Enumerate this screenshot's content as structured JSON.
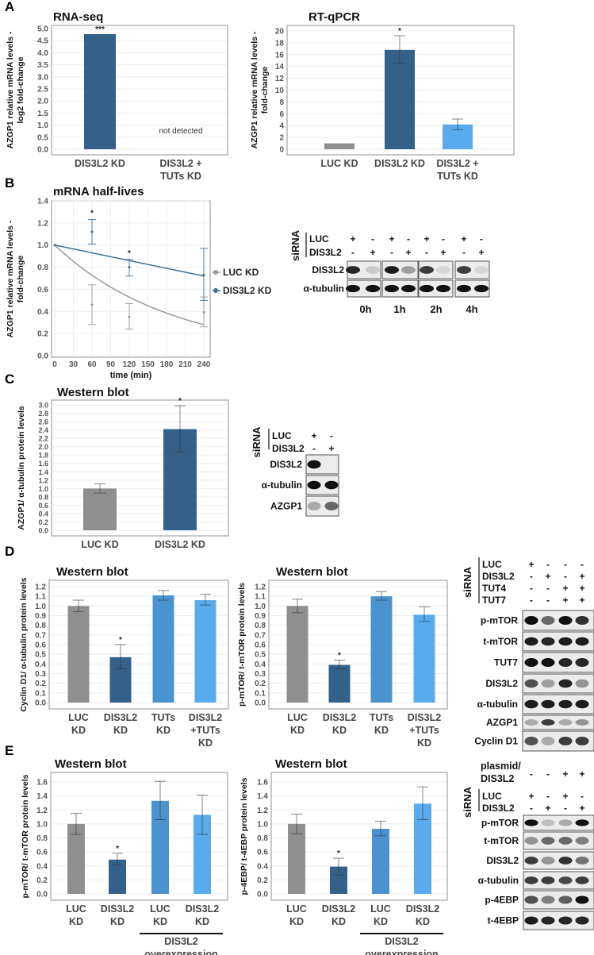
{
  "panel_letters": [
    "A",
    "B",
    "C",
    "D",
    "E"
  ],
  "colors": {
    "gray": "#8f8f8f",
    "dark_blue": "#346189",
    "mid_blue": "#4a93cf",
    "light_blue": "#5aabeb",
    "line_gray": "#999999",
    "line_blue": "#3b6f96"
  },
  "chart_data": [
    {
      "id": "A1",
      "type": "bar",
      "title": "RNA-seq",
      "ylabel": [
        "AZGP1 relative mRNA levels -",
        "log2 fold-change"
      ],
      "categories": [
        [
          "DIS3L2 KD"
        ],
        [
          "DIS3L2 +",
          "TUTs KD"
        ]
      ],
      "values": [
        4.77,
        null
      ],
      "err_low": [
        null,
        null
      ],
      "err_high": [
        null,
        null
      ],
      "colors": [
        "dark_blue",
        null
      ],
      "stars": [
        "***",
        ""
      ],
      "annotation": "not detected",
      "ylim": [
        0,
        5
      ],
      "ytick_step": 0.5,
      "ytick_decimals": 1
    },
    {
      "id": "A2",
      "type": "bar",
      "title": "RT-qPCR",
      "ylabel": [
        "AZGP1 relative mRNA levels -",
        "fold-change"
      ],
      "categories": [
        [
          "LUC KD"
        ],
        [
          "DIS3L2 KD"
        ],
        [
          "DIS3L2 +",
          "TUTs KD"
        ]
      ],
      "values": [
        1.0,
        16.8,
        4.2
      ],
      "err_low": [
        null,
        14.5,
        3.3
      ],
      "err_high": [
        null,
        19.2,
        5.1
      ],
      "colors": [
        "gray",
        "dark_blue",
        "light_blue"
      ],
      "stars": [
        "",
        "*",
        ""
      ],
      "ylim": [
        0,
        20
      ],
      "ytick_step": 2,
      "ytick_decimals": 0
    },
    {
      "id": "B",
      "type": "line",
      "title": "mRNA half-lives",
      "xlabel": "time (min)",
      "ylabel": [
        "AZGP1 relative mRNA levels -",
        "fold-change"
      ],
      "xticks": [
        0,
        30,
        60,
        90,
        120,
        150,
        180,
        210,
        240
      ],
      "xlim": [
        0,
        240
      ],
      "ylim": [
        0,
        1.4
      ],
      "ytick_step": 0.2,
      "ytick_decimals": 1,
      "series": [
        {
          "name": "LUC KD",
          "color": "line_gray",
          "x": [
            0,
            60,
            120,
            240
          ],
          "y": [
            1.0,
            0.46,
            0.35,
            0.39
          ],
          "err_low": [
            1.0,
            0.28,
            0.24,
            0.26
          ],
          "err_high": [
            1.0,
            0.64,
            0.47,
            0.53
          ],
          "fit": {
            "type": "exponential",
            "y0": 1.0,
            "y_end": 0.28
          },
          "stars": [
            "",
            "",
            "",
            ""
          ]
        },
        {
          "name": "DIS3L2 KD",
          "color": "line_blue",
          "x": [
            0,
            60,
            120,
            240
          ],
          "y": [
            1.0,
            1.12,
            0.8,
            0.73
          ],
          "err_low": [
            1.0,
            1.01,
            0.72,
            0.5
          ],
          "err_high": [
            1.0,
            1.23,
            0.87,
            0.97
          ],
          "fit": {
            "type": "linear",
            "y0": 1.0,
            "y_end": 0.72
          },
          "stars": [
            "",
            "*",
            "*",
            ""
          ]
        }
      ],
      "legend": "right"
    },
    {
      "id": "C",
      "type": "bar",
      "title": "Western blot",
      "ylabel": [
        "AZGP1/ α-tubulin protein levels"
      ],
      "categories": [
        [
          "LUC KD"
        ],
        [
          "DIS3L2 KD"
        ]
      ],
      "values": [
        1.0,
        2.42
      ],
      "err_low": [
        0.89,
        1.87
      ],
      "err_high": [
        1.11,
        2.98
      ],
      "colors": [
        "gray",
        "dark_blue"
      ],
      "stars": [
        "",
        "*"
      ],
      "ylim": [
        0,
        3
      ],
      "ytick_step": 0.2,
      "ytick_decimals": 1
    },
    {
      "id": "D1",
      "type": "bar",
      "title": "Western blot",
      "ylabel": [
        "Cyclin D1/ α-tubulin protein levels"
      ],
      "categories": [
        [
          "LUC",
          "KD"
        ],
        [
          "DIS3L2",
          "KD"
        ],
        [
          "TUTs",
          "KD"
        ],
        [
          "DIS3L2",
          "+TUTs",
          "KD"
        ]
      ],
      "values": [
        1.0,
        0.47,
        1.11,
        1.06
      ],
      "err_low": [
        0.94,
        0.35,
        1.06,
        1.01
      ],
      "err_high": [
        1.06,
        0.6,
        1.16,
        1.12
      ],
      "colors": [
        "gray",
        "dark_blue",
        "mid_blue",
        "light_blue"
      ],
      "stars": [
        "",
        "*",
        "",
        ""
      ],
      "ylim": [
        0,
        1.2
      ],
      "ytick_step": 0.1,
      "ytick_decimals": 1
    },
    {
      "id": "D2",
      "type": "bar",
      "title": "Western blot",
      "ylabel": [
        "p-mTOR/ t-mTOR protein levels"
      ],
      "categories": [
        [
          "LUC",
          "KD"
        ],
        [
          "DIS3L2",
          "KD"
        ],
        [
          "TUTs",
          "KD"
        ],
        [
          "DIS3L2",
          "+TUTs",
          "KD"
        ]
      ],
      "values": [
        1.0,
        0.39,
        1.1,
        0.91
      ],
      "err_low": [
        0.93,
        0.35,
        1.06,
        0.84
      ],
      "err_high": [
        1.07,
        0.44,
        1.15,
        0.99
      ],
      "colors": [
        "gray",
        "dark_blue",
        "mid_blue",
        "light_blue"
      ],
      "stars": [
        "",
        "*",
        "",
        ""
      ],
      "ylim": [
        0,
        1.2
      ],
      "ytick_step": 0.1,
      "ytick_decimals": 1
    },
    {
      "id": "E1",
      "type": "bar",
      "title": "Western blot",
      "ylabel": [
        "p-mTOR/ t-mTOR protein levels"
      ],
      "categories": [
        [
          "LUC",
          "KD"
        ],
        [
          "DIS3L2",
          "KD"
        ],
        [
          "LUC",
          "KD"
        ],
        [
          "DIS3L2",
          "KD"
        ]
      ],
      "values": [
        1.0,
        0.49,
        1.33,
        1.13
      ],
      "err_low": [
        0.85,
        0.41,
        1.06,
        0.85
      ],
      "err_high": [
        1.15,
        0.58,
        1.61,
        1.41
      ],
      "colors": [
        "gray",
        "dark_blue",
        "mid_blue",
        "light_blue"
      ],
      "stars": [
        "",
        "*",
        "",
        ""
      ],
      "ylim": [
        0,
        1.6
      ],
      "ytick_step": 0.2,
      "ytick_decimals": 1,
      "group_annotation": [
        "DIS3L2",
        "overexpression"
      ]
    },
    {
      "id": "E2",
      "type": "bar",
      "title": "Western blot",
      "ylabel": [
        "p-4EBP/ t-4EBP protein levels"
      ],
      "categories": [
        [
          "LUC",
          "KD"
        ],
        [
          "DIS3L2",
          "KD"
        ],
        [
          "LUC",
          "KD"
        ],
        [
          "DIS3L2",
          "KD"
        ]
      ],
      "values": [
        1.0,
        0.39,
        0.93,
        1.29
      ],
      "err_low": [
        0.86,
        0.27,
        0.83,
        1.06
      ],
      "err_high": [
        1.14,
        0.51,
        1.04,
        1.53
      ],
      "colors": [
        "gray",
        "dark_blue",
        "mid_blue",
        "light_blue"
      ],
      "stars": [
        "",
        "*",
        "",
        ""
      ],
      "ylim": [
        0,
        1.6
      ],
      "ytick_step": 0.2,
      "ytick_decimals": 1,
      "group_annotation": [
        "DIS3L2",
        "overexpression"
      ]
    }
  ],
  "blots": [
    {
      "id": "blotB",
      "siRNA_label": "siRNA",
      "conditions": [
        {
          "name": "LUC",
          "signs": [
            "+",
            "-",
            "+",
            "-",
            "+",
            "-",
            "+",
            "-"
          ]
        },
        {
          "name": "DIS3L2",
          "signs": [
            "-",
            "+",
            "-",
            "+",
            "-",
            "+",
            "-",
            "+"
          ]
        }
      ],
      "rows": [
        {
          "name": "DIS3L2",
          "bands": [
            0.9,
            0.15,
            0.95,
            0.35,
            0.8,
            0.1,
            0.8,
            0.1
          ]
        },
        {
          "name": "α-tubulin",
          "bands": [
            1,
            1,
            1,
            1,
            1,
            1,
            1,
            1
          ]
        }
      ],
      "time_labels": [
        "0h",
        "1h",
        "2h",
        "4h"
      ]
    },
    {
      "id": "blotC",
      "siRNA_label": "siRNA",
      "conditions": [
        {
          "name": "LUC",
          "signs": [
            "+",
            "-"
          ]
        },
        {
          "name": "DIS3L2",
          "signs": [
            "-",
            "+"
          ]
        }
      ],
      "rows": [
        {
          "name": "DIS3L2",
          "bands": [
            1,
            0
          ]
        },
        {
          "name": "α-tubulin",
          "bands": [
            1,
            1
          ]
        },
        {
          "name": "AZGP1",
          "bands": [
            0.3,
            0.6
          ]
        }
      ]
    },
    {
      "id": "blotD",
      "siRNA_label": "siRNA",
      "conditions": [
        {
          "name": "LUC",
          "signs": [
            "+",
            "-",
            "-",
            "-"
          ]
        },
        {
          "name": "DIS3L2",
          "signs": [
            "-",
            "+",
            "-",
            "+"
          ]
        },
        {
          "name": "TUT4",
          "signs": [
            "-",
            "-",
            "+",
            "+"
          ]
        },
        {
          "name": "TUT7",
          "signs": [
            "-",
            "-",
            "+",
            "+"
          ]
        }
      ],
      "rows": [
        {
          "name": "p-mTOR",
          "bands": [
            1,
            0.6,
            1,
            0.85
          ]
        },
        {
          "name": "t-mTOR",
          "bands": [
            0.95,
            0.9,
            0.95,
            0.95
          ]
        },
        {
          "name": "TUT7",
          "bands": [
            1,
            1,
            0.9,
            0.9
          ]
        },
        {
          "name": "DIS3L2",
          "bands": [
            0.7,
            0.35,
            0.9,
            0.4
          ]
        },
        {
          "name": "α-tubulin",
          "bands": [
            0.95,
            0.95,
            0.95,
            0.95
          ]
        },
        {
          "name": "AZGP1",
          "bands": [
            0.3,
            0.8,
            0.3,
            0.4
          ]
        },
        {
          "name": "Cyclin D1",
          "bands": [
            0.7,
            0.3,
            0.8,
            0.8
          ]
        }
      ]
    },
    {
      "id": "blotE",
      "plasmid_label": [
        "plasmid/",
        "DIS3L2"
      ],
      "plasmid_signs": [
        "-",
        "-",
        "+",
        "+"
      ],
      "siRNA_label": "siRNA",
      "conditions": [
        {
          "name": "LUC",
          "signs": [
            "+",
            "-",
            "+",
            "-"
          ]
        },
        {
          "name": "DIS3L2",
          "signs": [
            "-",
            "+",
            "-",
            "+"
          ]
        }
      ],
      "rows": [
        {
          "name": "p-mTOR",
          "bands": [
            1,
            0.2,
            0.3,
            1
          ]
        },
        {
          "name": "t-mTOR",
          "bands": [
            0.4,
            0.6,
            0.6,
            0.5
          ]
        },
        {
          "name": "DIS3L2",
          "bands": [
            0.8,
            0.4,
            0.85,
            0.55
          ]
        },
        {
          "name": "α-tubulin",
          "bands": [
            0.8,
            0.8,
            0.75,
            0.8
          ]
        },
        {
          "name": "p-4EBP",
          "bands": [
            0.7,
            0.5,
            0.65,
            1
          ]
        },
        {
          "name": "t-4EBP",
          "bands": [
            0.95,
            0.9,
            0.9,
            0.9
          ]
        }
      ]
    }
  ]
}
